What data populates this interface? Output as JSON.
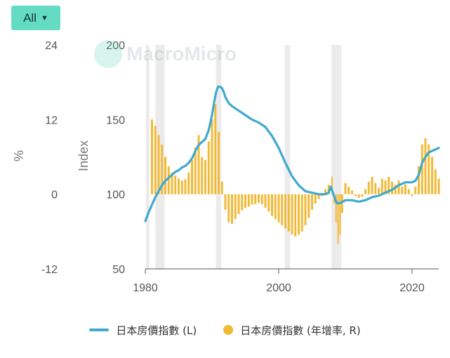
{
  "range_button": {
    "label": "All"
  },
  "watermark": "MacroMicro",
  "colors": {
    "line": "#3fa9d0",
    "bar": "#f2b935",
    "recession": "#ebebeb"
  },
  "chart_data": {
    "type": "line",
    "x_ticks": [
      "1980",
      "2000",
      "2020"
    ],
    "y_left": {
      "label": "Index",
      "ticks": [
        "200",
        "150",
        "100",
        "50"
      ],
      "range": [
        50,
        200
      ]
    },
    "y_right": {
      "label": "%",
      "ticks": [
        "24",
        "12",
        "0",
        "-12"
      ],
      "range": [
        -12,
        24
      ]
    },
    "recessions": [
      [
        1980.1,
        1980.6
      ],
      [
        1981.5,
        1982.9
      ],
      [
        1990.6,
        1991.4
      ],
      [
        2000.9,
        2001.7
      ],
      [
        2007.9,
        2009.4
      ]
    ],
    "series": [
      {
        "name": "日本房價指數 (L)",
        "type": "line",
        "axis": "left",
        "points": [
          [
            1980.0,
            82
          ],
          [
            1980.5,
            88
          ],
          [
            1981.0,
            93
          ],
          [
            1981.5,
            98
          ],
          [
            1982.0,
            102
          ],
          [
            1982.5,
            106
          ],
          [
            1983.0,
            109
          ],
          [
            1983.5,
            111
          ],
          [
            1984.0,
            113
          ],
          [
            1984.5,
            115
          ],
          [
            1985.0,
            116
          ],
          [
            1985.5,
            118
          ],
          [
            1986.0,
            119
          ],
          [
            1986.5,
            121
          ],
          [
            1987.0,
            124
          ],
          [
            1987.5,
            129
          ],
          [
            1988.0,
            133
          ],
          [
            1988.5,
            135
          ],
          [
            1989.0,
            137
          ],
          [
            1989.5,
            143
          ],
          [
            1990.0,
            153
          ],
          [
            1990.3,
            161
          ],
          [
            1990.6,
            168
          ],
          [
            1990.9,
            172
          ],
          [
            1991.2,
            172
          ],
          [
            1991.5,
            171
          ],
          [
            1991.8,
            168
          ],
          [
            1992.0,
            165
          ],
          [
            1992.5,
            161
          ],
          [
            1993.0,
            159
          ],
          [
            1994.0,
            156
          ],
          [
            1995.0,
            153
          ],
          [
            1996.0,
            150
          ],
          [
            1997.0,
            148
          ],
          [
            1998.0,
            145
          ],
          [
            1999.0,
            139
          ],
          [
            2000.0,
            131
          ],
          [
            2001.0,
            121
          ],
          [
            2002.0,
            112
          ],
          [
            2003.0,
            106
          ],
          [
            2004.0,
            102
          ],
          [
            2005.0,
            101
          ],
          [
            2006.0,
            100
          ],
          [
            2007.0,
            100
          ],
          [
            2007.5,
            101
          ],
          [
            2007.8,
            105
          ],
          [
            2008.2,
            100
          ],
          [
            2008.7,
            94
          ],
          [
            2009.2,
            94
          ],
          [
            2010.0,
            96
          ],
          [
            2011.0,
            96
          ],
          [
            2012.0,
            95
          ],
          [
            2013.0,
            96
          ],
          [
            2014.0,
            98
          ],
          [
            2015.0,
            99
          ],
          [
            2016.0,
            101
          ],
          [
            2017.0,
            103
          ],
          [
            2018.0,
            106
          ],
          [
            2019.0,
            108
          ],
          [
            2020.0,
            108
          ],
          [
            2020.5,
            109
          ],
          [
            2021.0,
            113
          ],
          [
            2021.5,
            121
          ],
          [
            2022.0,
            125
          ],
          [
            2022.5,
            128
          ],
          [
            2023.0,
            129
          ],
          [
            2023.5,
            130
          ],
          [
            2024.0,
            131
          ]
        ]
      },
      {
        "name": "日本房價指數 (年增率, R)",
        "type": "bar",
        "axis": "right",
        "points": [
          [
            1981.0,
            12.0
          ],
          [
            1981.5,
            11.0
          ],
          [
            1982.0,
            9.5
          ],
          [
            1982.5,
            8.0
          ],
          [
            1983.0,
            6.0
          ],
          [
            1983.5,
            4.5
          ],
          [
            1984.0,
            3.5
          ],
          [
            1984.5,
            3.0
          ],
          [
            1985.0,
            2.5
          ],
          [
            1985.5,
            2.2
          ],
          [
            1986.0,
            2.4
          ],
          [
            1986.5,
            3.5
          ],
          [
            1987.0,
            5.5
          ],
          [
            1987.5,
            7.5
          ],
          [
            1988.0,
            9.5
          ],
          [
            1988.5,
            6.0
          ],
          [
            1989.0,
            5.5
          ],
          [
            1989.5,
            8.5
          ],
          [
            1990.0,
            12.0
          ],
          [
            1990.5,
            14.5
          ],
          [
            1991.0,
            10.0
          ],
          [
            1991.5,
            2.0
          ],
          [
            1992.0,
            -2.5
          ],
          [
            1992.5,
            -4.5
          ],
          [
            1993.0,
            -4.8
          ],
          [
            1993.5,
            -4.0
          ],
          [
            1994.0,
            -3.2
          ],
          [
            1994.5,
            -2.6
          ],
          [
            1995.0,
            -2.2
          ],
          [
            1995.5,
            -2.0
          ],
          [
            1996.0,
            -1.7
          ],
          [
            1996.5,
            -1.6
          ],
          [
            1997.0,
            -1.4
          ],
          [
            1997.5,
            -1.6
          ],
          [
            1998.0,
            -2.2
          ],
          [
            1998.5,
            -2.8
          ],
          [
            1999.0,
            -3.5
          ],
          [
            1999.5,
            -4.0
          ],
          [
            2000.0,
            -4.5
          ],
          [
            2000.5,
            -5.0
          ],
          [
            2001.0,
            -5.5
          ],
          [
            2001.5,
            -6.0
          ],
          [
            2002.0,
            -6.5
          ],
          [
            2002.5,
            -6.8
          ],
          [
            2003.0,
            -6.5
          ],
          [
            2003.5,
            -6.0
          ],
          [
            2004.0,
            -5.0
          ],
          [
            2004.5,
            -3.8
          ],
          [
            2005.0,
            -2.5
          ],
          [
            2005.5,
            -1.5
          ],
          [
            2006.0,
            -0.8
          ],
          [
            2006.5,
            -0.3
          ],
          [
            2007.0,
            0.8
          ],
          [
            2007.5,
            1.5
          ],
          [
            2008.0,
            2.8
          ],
          [
            2008.3,
            -1.5
          ],
          [
            2008.6,
            -4.5
          ],
          [
            2008.9,
            -8.0
          ],
          [
            2009.2,
            -6.5
          ],
          [
            2009.5,
            -3.0
          ],
          [
            2010.0,
            1.8
          ],
          [
            2010.5,
            1.2
          ],
          [
            2011.0,
            0.6
          ],
          [
            2011.5,
            -0.3
          ],
          [
            2012.0,
            -0.6
          ],
          [
            2012.5,
            -0.4
          ],
          [
            2013.0,
            0.8
          ],
          [
            2013.5,
            2.0
          ],
          [
            2014.0,
            2.8
          ],
          [
            2014.5,
            1.8
          ],
          [
            2015.0,
            1.0
          ],
          [
            2015.5,
            2.5
          ],
          [
            2016.0,
            2.2
          ],
          [
            2016.5,
            2.8
          ],
          [
            2017.0,
            2.0
          ],
          [
            2017.5,
            1.5
          ],
          [
            2018.0,
            2.2
          ],
          [
            2018.5,
            1.2
          ],
          [
            2019.0,
            1.6
          ],
          [
            2019.5,
            0.8
          ],
          [
            2020.0,
            -0.3
          ],
          [
            2020.5,
            1.2
          ],
          [
            2021.0,
            4.5
          ],
          [
            2021.5,
            8.0
          ],
          [
            2022.0,
            9.0
          ],
          [
            2022.5,
            8.0
          ],
          [
            2023.0,
            6.0
          ],
          [
            2023.5,
            4.0
          ],
          [
            2024.0,
            2.5
          ]
        ]
      }
    ]
  },
  "legend": [
    {
      "label": "日本房價指數 (L)"
    },
    {
      "label": "日本房價指數 (年增率, R)"
    }
  ]
}
